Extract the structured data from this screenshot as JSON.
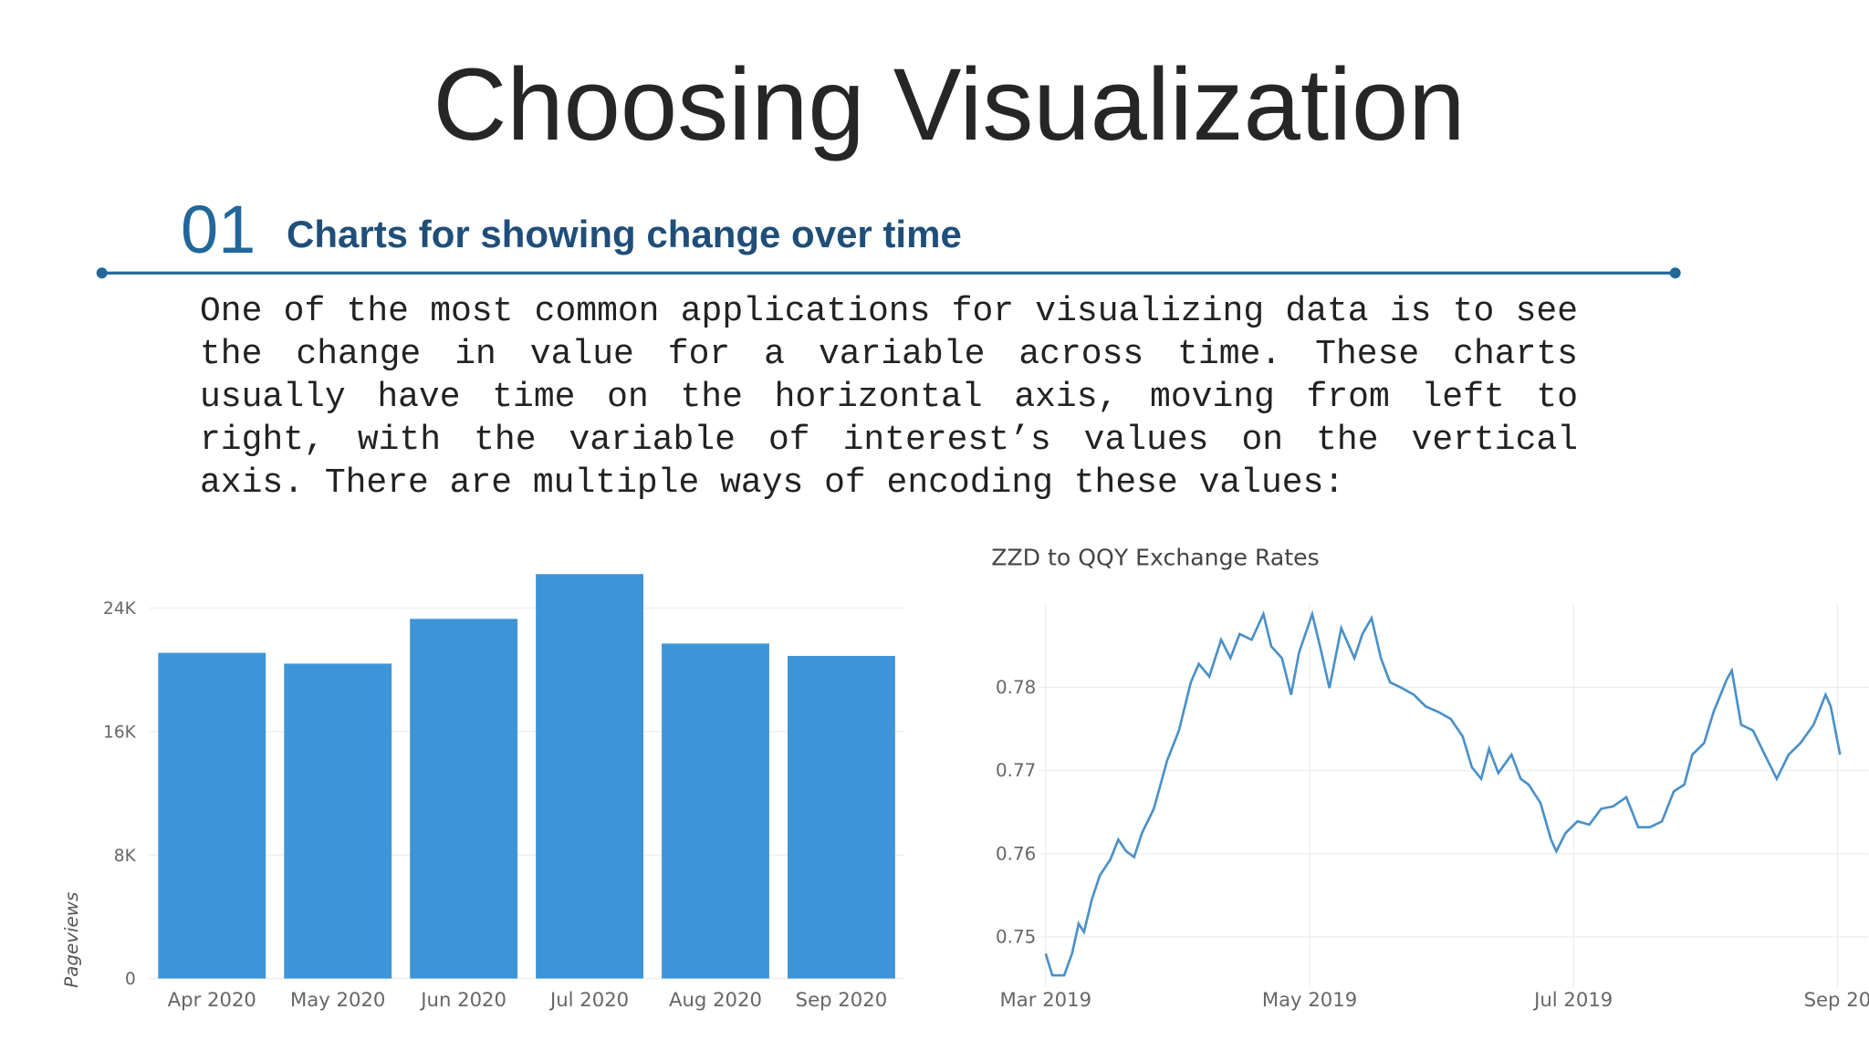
{
  "title": "Choosing Visualization",
  "section": {
    "number": "01",
    "heading": "Charts for showing change over time",
    "paragraph": "One of the most common applications for visualizing data is to see the change in value for a variable across time. These charts usually have time on the horizontal axis, moving from left to right, with the variable of interest’s values on the vertical axis. There are multiple ways of encoding these values:"
  },
  "chart_data": [
    {
      "type": "bar",
      "y_label": "Pageviews",
      "categories": [
        "Apr 2020",
        "May 2020",
        "Jun 2020",
        "Jul 2020",
        "Aug 2020",
        "Sep 2020"
      ],
      "values": [
        21100,
        20400,
        23300,
        26200,
        21700,
        20900
      ],
      "color": "#3d95d8",
      "ylim": [
        0,
        27000
      ],
      "yticks": [
        0,
        {
          "value": 8000,
          "label": "8K"
        },
        {
          "value": 16000,
          "label": "16K"
        },
        {
          "value": 24000,
          "label": "24K"
        }
      ],
      "grid": true
    },
    {
      "type": "line",
      "title": "ZZD to QQY Exchange Rates",
      "color": "#4a90c8",
      "x": [
        3.0,
        3.05,
        3.14,
        3.2,
        3.25,
        3.29,
        3.35,
        3.41,
        3.49,
        3.55,
        3.61,
        3.67,
        3.73,
        3.82,
        3.92,
        4.01,
        4.1,
        4.16,
        4.24,
        4.33,
        4.4,
        4.47,
        4.56,
        4.65,
        4.71,
        4.79,
        4.86,
        4.92,
        5.02,
        5.09,
        5.15,
        5.24,
        5.34,
        5.4,
        5.47,
        5.54,
        5.61,
        5.7,
        5.79,
        5.88,
        5.98,
        6.07,
        6.16,
        6.23,
        6.3,
        6.36,
        6.43,
        6.53,
        6.6,
        6.66,
        6.75,
        6.83,
        6.87,
        6.94,
        7.03,
        7.12,
        7.21,
        7.3,
        7.4,
        7.49,
        7.58,
        7.67,
        7.76,
        7.84,
        7.9,
        7.99,
        8.06,
        8.16,
        8.2,
        8.27,
        8.36,
        8.45,
        8.54,
        8.63,
        8.72,
        8.82,
        8.91,
        8.95,
        9.02
      ],
      "values": [
        0.748,
        0.7454,
        0.7454,
        0.748,
        0.7516,
        0.7506,
        0.7545,
        0.7574,
        0.7593,
        0.7617,
        0.7603,
        0.7596,
        0.7625,
        0.7654,
        0.7712,
        0.7748,
        0.7806,
        0.7828,
        0.7813,
        0.7857,
        0.7835,
        0.7864,
        0.7857,
        0.7888,
        0.7849,
        0.7835,
        0.7791,
        0.7842,
        0.7888,
        0.7842,
        0.7799,
        0.7871,
        0.7835,
        0.7864,
        0.7883,
        0.7835,
        0.7806,
        0.7799,
        0.7791,
        0.7777,
        0.777,
        0.7762,
        0.7741,
        0.7704,
        0.769,
        0.7726,
        0.7697,
        0.7719,
        0.769,
        0.7683,
        0.7661,
        0.7617,
        0.7603,
        0.7625,
        0.7639,
        0.7635,
        0.7654,
        0.7657,
        0.7668,
        0.7632,
        0.7632,
        0.7639,
        0.7675,
        0.7683,
        0.7719,
        0.7733,
        0.777,
        0.7809,
        0.782,
        0.7755,
        0.7748,
        0.7719,
        0.769,
        0.7719,
        0.7733,
        0.7755,
        0.7791,
        0.7777,
        0.7719
      ],
      "xlim": [
        2.95,
        9.1
      ],
      "xticks": [
        {
          "value": 3,
          "label": "Mar 2019"
        },
        {
          "value": 5,
          "label": "May 2019"
        },
        {
          "value": 7,
          "label": "Jul 2019"
        },
        {
          "value": 9,
          "label": "Sep 20"
        }
      ],
      "ylim": [
        0.744,
        0.79
      ],
      "yticks": [
        0.75,
        0.76,
        0.77,
        0.78
      ],
      "grid": true
    }
  ]
}
